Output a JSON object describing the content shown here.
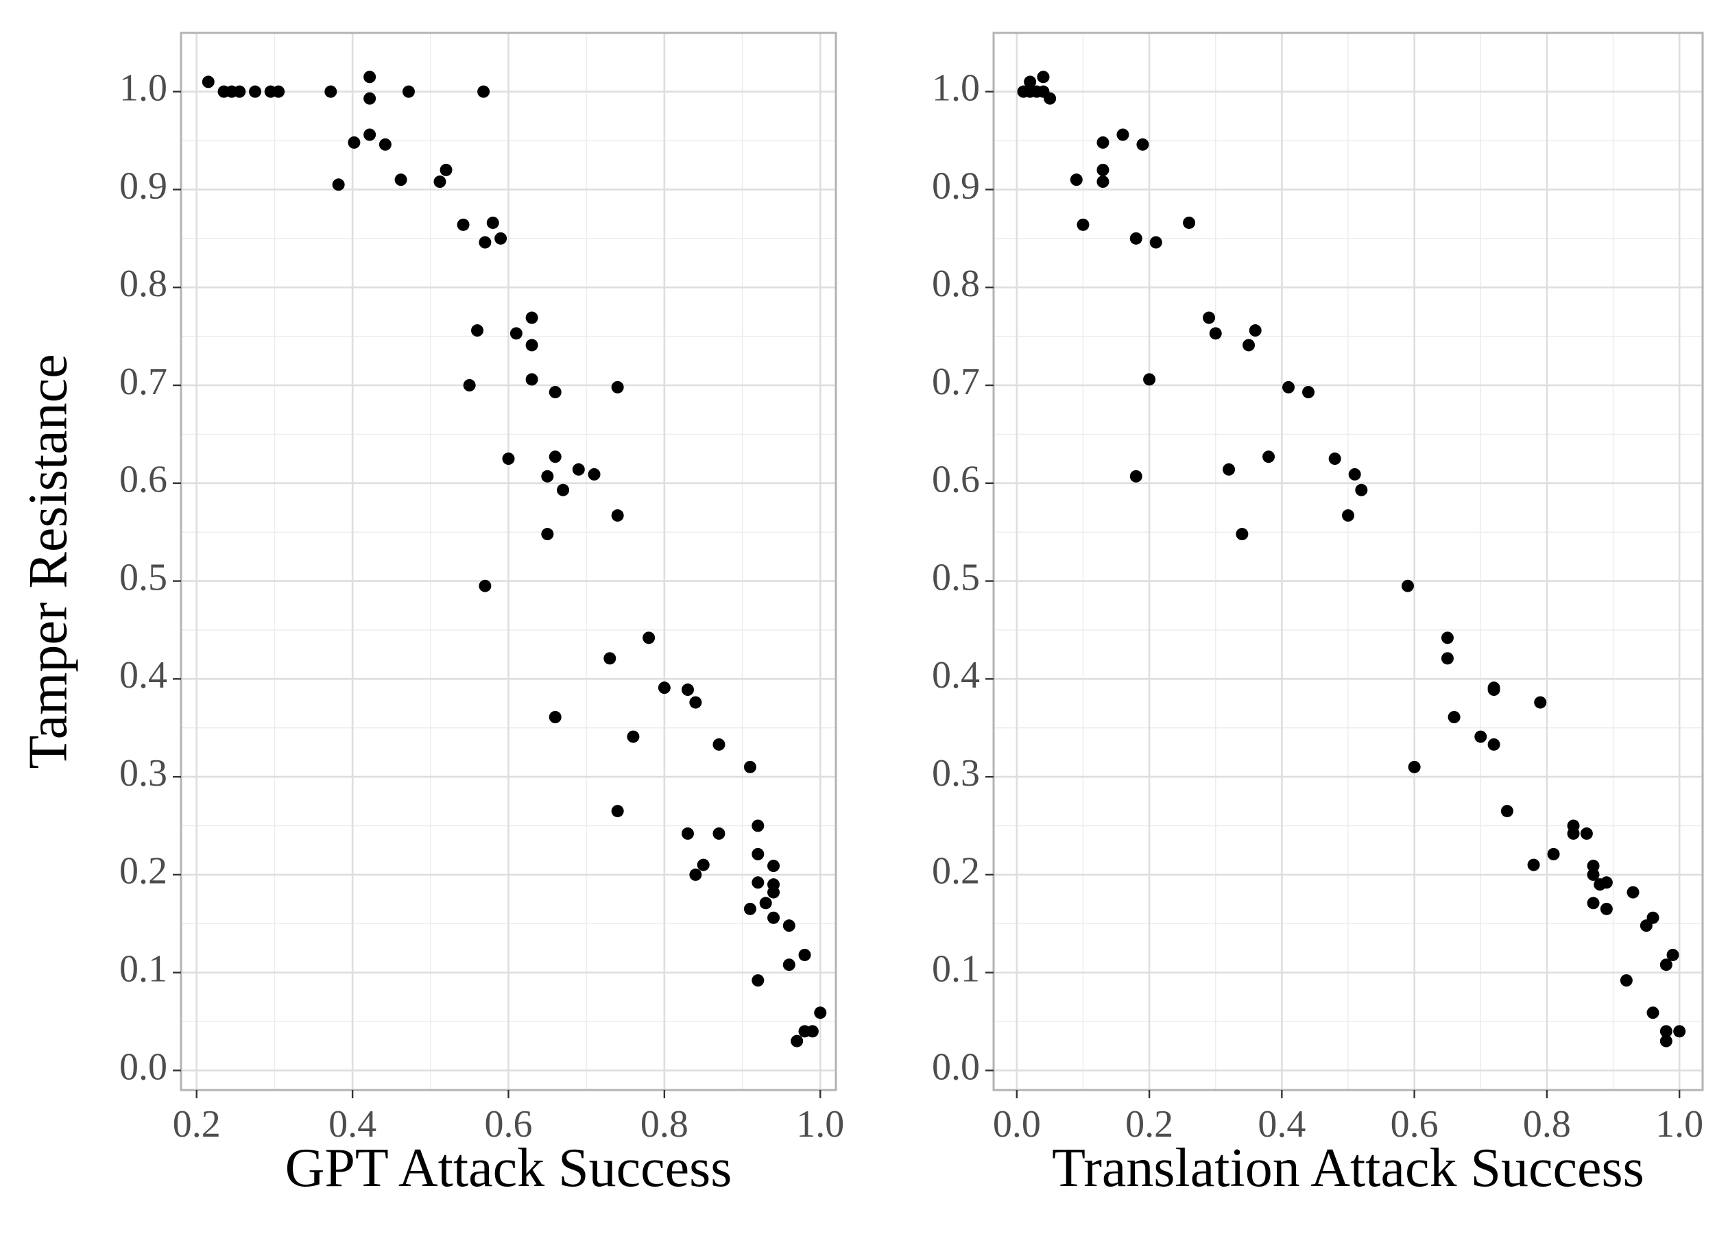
{
  "chart_data": [
    {
      "type": "scatter",
      "xlabel": "GPT Attack Success",
      "ylabel": "Tamper Resistance",
      "xlim": [
        0.18,
        1.02
      ],
      "ylim": [
        -0.02,
        1.06
      ],
      "x_ticks": [
        "0.2",
        "0.4",
        "0.6",
        "0.8",
        "1.0"
      ],
      "y_ticks": [
        "0.0",
        "0.1",
        "0.2",
        "0.3",
        "0.4",
        "0.5",
        "0.6",
        "0.7",
        "0.8",
        "0.9",
        "1.0"
      ],
      "grid": true,
      "point_color": "#000000",
      "points": [
        {
          "x": 0.215,
          "y": 1.01
        },
        {
          "x": 0.235,
          "y": 1.0
        },
        {
          "x": 0.245,
          "y": 1.0
        },
        {
          "x": 0.255,
          "y": 1.0
        },
        {
          "x": 0.275,
          "y": 1.0
        },
        {
          "x": 0.295,
          "y": 1.0
        },
        {
          "x": 0.305,
          "y": 1.0
        },
        {
          "x": 0.372,
          "y": 1.0
        },
        {
          "x": 0.382,
          "y": 0.905
        },
        {
          "x": 0.402,
          "y": 0.948
        },
        {
          "x": 0.422,
          "y": 1.015
        },
        {
          "x": 0.422,
          "y": 0.993
        },
        {
          "x": 0.422,
          "y": 0.956
        },
        {
          "x": 0.442,
          "y": 0.946
        },
        {
          "x": 0.462,
          "y": 0.91
        },
        {
          "x": 0.472,
          "y": 1.0
        },
        {
          "x": 0.512,
          "y": 0.908
        },
        {
          "x": 0.52,
          "y": 0.92
        },
        {
          "x": 0.542,
          "y": 0.864
        },
        {
          "x": 0.55,
          "y": 0.7
        },
        {
          "x": 0.56,
          "y": 0.756
        },
        {
          "x": 0.568,
          "y": 1.0
        },
        {
          "x": 0.57,
          "y": 0.846
        },
        {
          "x": 0.57,
          "y": 0.495
        },
        {
          "x": 0.58,
          "y": 0.866
        },
        {
          "x": 0.59,
          "y": 0.85
        },
        {
          "x": 0.6,
          "y": 0.625
        },
        {
          "x": 0.61,
          "y": 0.753
        },
        {
          "x": 0.63,
          "y": 0.769
        },
        {
          "x": 0.63,
          "y": 0.741
        },
        {
          "x": 0.63,
          "y": 0.706
        },
        {
          "x": 0.65,
          "y": 0.607
        },
        {
          "x": 0.65,
          "y": 0.548
        },
        {
          "x": 0.66,
          "y": 0.693
        },
        {
          "x": 0.66,
          "y": 0.627
        },
        {
          "x": 0.66,
          "y": 0.361
        },
        {
          "x": 0.67,
          "y": 0.593
        },
        {
          "x": 0.69,
          "y": 0.614
        },
        {
          "x": 0.71,
          "y": 0.609
        },
        {
          "x": 0.73,
          "y": 0.421
        },
        {
          "x": 0.74,
          "y": 0.698
        },
        {
          "x": 0.74,
          "y": 0.567
        },
        {
          "x": 0.74,
          "y": 0.265
        },
        {
          "x": 0.76,
          "y": 0.341
        },
        {
          "x": 0.78,
          "y": 0.442
        },
        {
          "x": 0.8,
          "y": 0.391
        },
        {
          "x": 0.83,
          "y": 0.389
        },
        {
          "x": 0.83,
          "y": 0.242
        },
        {
          "x": 0.84,
          "y": 0.376
        },
        {
          "x": 0.84,
          "y": 0.2
        },
        {
          "x": 0.85,
          "y": 0.21
        },
        {
          "x": 0.87,
          "y": 0.333
        },
        {
          "x": 0.87,
          "y": 0.242
        },
        {
          "x": 0.91,
          "y": 0.31
        },
        {
          "x": 0.91,
          "y": 0.165
        },
        {
          "x": 0.92,
          "y": 0.25
        },
        {
          "x": 0.92,
          "y": 0.221
        },
        {
          "x": 0.92,
          "y": 0.192
        },
        {
          "x": 0.92,
          "y": 0.092
        },
        {
          "x": 0.93,
          "y": 0.171
        },
        {
          "x": 0.94,
          "y": 0.209
        },
        {
          "x": 0.94,
          "y": 0.19
        },
        {
          "x": 0.94,
          "y": 0.182
        },
        {
          "x": 0.94,
          "y": 0.156
        },
        {
          "x": 0.96,
          "y": 0.148
        },
        {
          "x": 0.96,
          "y": 0.108
        },
        {
          "x": 0.97,
          "y": 0.03
        },
        {
          "x": 0.98,
          "y": 0.118
        },
        {
          "x": 0.98,
          "y": 0.04
        },
        {
          "x": 0.99,
          "y": 0.04
        },
        {
          "x": 1.0,
          "y": 0.059
        }
      ]
    },
    {
      "type": "scatter",
      "xlabel": "Translation Attack Success",
      "ylabel": "",
      "xlim": [
        -0.035,
        1.035
      ],
      "ylim": [
        -0.02,
        1.06
      ],
      "x_ticks": [
        "0.0",
        "0.2",
        "0.4",
        "0.6",
        "0.8",
        "1.0"
      ],
      "y_ticks": [
        "0.0",
        "0.1",
        "0.2",
        "0.3",
        "0.4",
        "0.5",
        "0.6",
        "0.7",
        "0.8",
        "0.9",
        "1.0"
      ],
      "grid": true,
      "point_color": "#000000",
      "points": [
        {
          "x": 0.01,
          "y": 1.0
        },
        {
          "x": 0.02,
          "y": 1.01
        },
        {
          "x": 0.02,
          "y": 1.0
        },
        {
          "x": 0.03,
          "y": 1.0
        },
        {
          "x": 0.04,
          "y": 1.015
        },
        {
          "x": 0.04,
          "y": 1.0
        },
        {
          "x": 0.05,
          "y": 0.993
        },
        {
          "x": 0.09,
          "y": 0.91
        },
        {
          "x": 0.1,
          "y": 0.864
        },
        {
          "x": 0.13,
          "y": 0.948
        },
        {
          "x": 0.13,
          "y": 0.92
        },
        {
          "x": 0.13,
          "y": 0.908
        },
        {
          "x": 0.16,
          "y": 0.956
        },
        {
          "x": 0.18,
          "y": 0.85
        },
        {
          "x": 0.18,
          "y": 0.607
        },
        {
          "x": 0.19,
          "y": 0.946
        },
        {
          "x": 0.2,
          "y": 0.706
        },
        {
          "x": 0.21,
          "y": 0.846
        },
        {
          "x": 0.26,
          "y": 0.866
        },
        {
          "x": 0.29,
          "y": 0.769
        },
        {
          "x": 0.3,
          "y": 0.753
        },
        {
          "x": 0.32,
          "y": 0.614
        },
        {
          "x": 0.34,
          "y": 0.548
        },
        {
          "x": 0.35,
          "y": 0.741
        },
        {
          "x": 0.36,
          "y": 0.756
        },
        {
          "x": 0.38,
          "y": 0.627
        },
        {
          "x": 0.41,
          "y": 0.698
        },
        {
          "x": 0.44,
          "y": 0.693
        },
        {
          "x": 0.48,
          "y": 0.625
        },
        {
          "x": 0.5,
          "y": 0.567
        },
        {
          "x": 0.51,
          "y": 0.609
        },
        {
          "x": 0.52,
          "y": 0.593
        },
        {
          "x": 0.59,
          "y": 0.495
        },
        {
          "x": 0.6,
          "y": 0.31
        },
        {
          "x": 0.65,
          "y": 0.442
        },
        {
          "x": 0.65,
          "y": 0.421
        },
        {
          "x": 0.66,
          "y": 0.361
        },
        {
          "x": 0.7,
          "y": 0.341
        },
        {
          "x": 0.72,
          "y": 0.391
        },
        {
          "x": 0.72,
          "y": 0.389
        },
        {
          "x": 0.72,
          "y": 0.333
        },
        {
          "x": 0.74,
          "y": 0.265
        },
        {
          "x": 0.78,
          "y": 0.21
        },
        {
          "x": 0.79,
          "y": 0.376
        },
        {
          "x": 0.81,
          "y": 0.221
        },
        {
          "x": 0.84,
          "y": 0.25
        },
        {
          "x": 0.84,
          "y": 0.242
        },
        {
          "x": 0.86,
          "y": 0.242
        },
        {
          "x": 0.87,
          "y": 0.209
        },
        {
          "x": 0.87,
          "y": 0.2
        },
        {
          "x": 0.87,
          "y": 0.171
        },
        {
          "x": 0.88,
          "y": 0.19
        },
        {
          "x": 0.89,
          "y": 0.192
        },
        {
          "x": 0.89,
          "y": 0.165
        },
        {
          "x": 0.92,
          "y": 0.092
        },
        {
          "x": 0.93,
          "y": 0.182
        },
        {
          "x": 0.95,
          "y": 0.148
        },
        {
          "x": 0.96,
          "y": 0.156
        },
        {
          "x": 0.96,
          "y": 0.059
        },
        {
          "x": 0.98,
          "y": 0.108
        },
        {
          "x": 0.98,
          "y": 0.04
        },
        {
          "x": 0.98,
          "y": 0.03
        },
        {
          "x": 0.99,
          "y": 0.118
        },
        {
          "x": 1.0,
          "y": 0.04
        }
      ]
    }
  ]
}
